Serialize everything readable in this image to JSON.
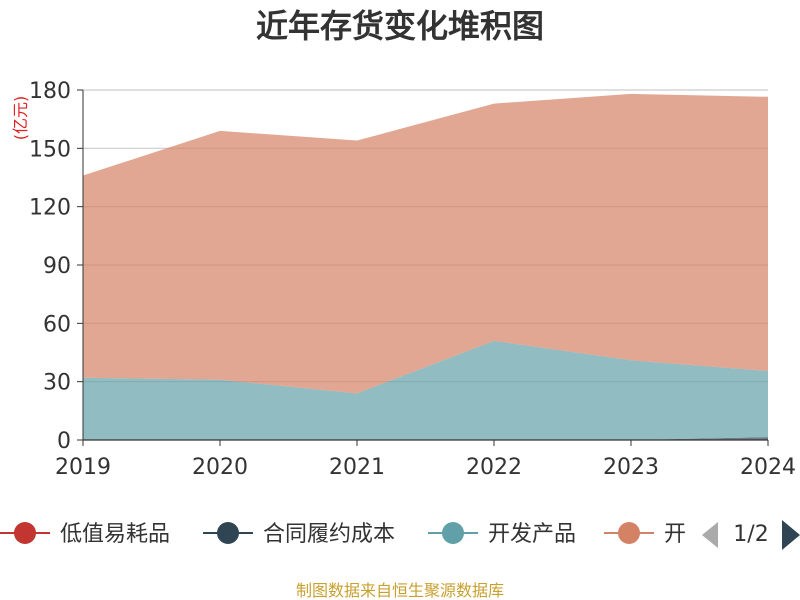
{
  "chart_data": {
    "type": "area",
    "title": "近年存货变化堆积图",
    "unit": "(亿元)",
    "categories": [
      "2019",
      "2020",
      "2021",
      "2022",
      "2023",
      "2024"
    ],
    "ylim": [
      0,
      180
    ],
    "yticks": [
      0,
      30,
      60,
      90,
      120,
      150,
      180
    ],
    "grid": true,
    "stacked": true,
    "series": [
      {
        "name": "低值易耗品",
        "color": "#c23531",
        "values": [
          0,
          0,
          0,
          0,
          0,
          0
        ]
      },
      {
        "name": "合同履约成本",
        "color": "#2f4554",
        "values": [
          0,
          0,
          0,
          0,
          0,
          1.5
        ]
      },
      {
        "name": "开发产品",
        "color": "#61a0a8",
        "values": [
          32,
          31,
          24,
          51,
          41,
          34
        ]
      },
      {
        "name": "开发成本",
        "color": "#d48265",
        "values": [
          104,
          128,
          130,
          122,
          137,
          141
        ]
      }
    ]
  },
  "legend": {
    "items": [
      "低值易耗品",
      "合同履约成本",
      "开发产品",
      "开"
    ],
    "page": "1/2"
  },
  "source": {
    "text": "制图数据来自恒生聚源数据库",
    "color": "#c8a030"
  },
  "colors": {
    "unit": "#e02020",
    "axis": "#333333",
    "grid": "#cccccc",
    "pager_inactive": "#aaaaaa",
    "pager_active": "#2f4554"
  }
}
